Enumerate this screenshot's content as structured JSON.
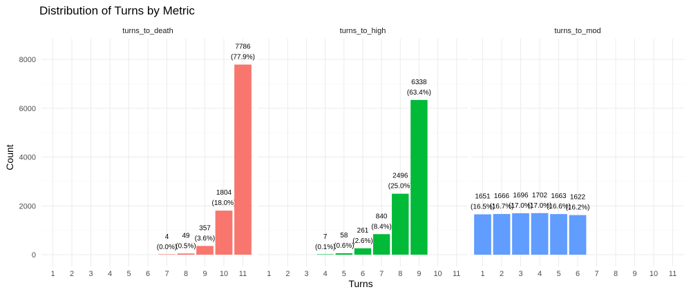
{
  "chart_data": {
    "type": "bar",
    "title": "Distribution of Turns by Metric",
    "xlabel": "Turns",
    "ylabel": "Count",
    "ylim": [
      0,
      8800
    ],
    "y_ticks": [
      0,
      2000,
      4000,
      6000,
      8000
    ],
    "x_ticks": [
      1,
      2,
      3,
      4,
      5,
      6,
      7,
      8,
      9,
      10,
      11
    ],
    "grid": true,
    "facets": [
      {
        "name": "turns_to_death",
        "color": "#F8766D",
        "bars": [
          {
            "x": 7,
            "value": 4,
            "label_count": "4",
            "label_pct": "(0.0%)"
          },
          {
            "x": 8,
            "value": 49,
            "label_count": "49",
            "label_pct": "(0.5%)"
          },
          {
            "x": 9,
            "value": 357,
            "label_count": "357",
            "label_pct": "(3.6%)"
          },
          {
            "x": 10,
            "value": 1804,
            "label_count": "1804",
            "label_pct": "(18.0%)"
          },
          {
            "x": 11,
            "value": 7786,
            "label_count": "7786",
            "label_pct": "(77.9%)"
          }
        ]
      },
      {
        "name": "turns_to_high",
        "color": "#00BA38",
        "bars": [
          {
            "x": 4,
            "value": 7,
            "label_count": "7",
            "label_pct": "(0.1%)"
          },
          {
            "x": 5,
            "value": 58,
            "label_count": "58",
            "label_pct": "(0.6%)"
          },
          {
            "x": 6,
            "value": 261,
            "label_count": "261",
            "label_pct": "(2.6%)"
          },
          {
            "x": 7,
            "value": 840,
            "label_count": "840",
            "label_pct": "(8.4%)"
          },
          {
            "x": 8,
            "value": 2496,
            "label_count": "2496",
            "label_pct": "(25.0%)"
          },
          {
            "x": 9,
            "value": 6338,
            "label_count": "6338",
            "label_pct": "(63.4%)"
          }
        ]
      },
      {
        "name": "turns_to_mod",
        "color": "#619CFF",
        "bars": [
          {
            "x": 1,
            "value": 1651,
            "label_count": "1651",
            "label_pct": "(16.5%)"
          },
          {
            "x": 2,
            "value": 1666,
            "label_count": "1666",
            "label_pct": "(16.7%)"
          },
          {
            "x": 3,
            "value": 1696,
            "label_count": "1696",
            "label_pct": "(17.0%)"
          },
          {
            "x": 4,
            "value": 1702,
            "label_count": "1702",
            "label_pct": "(17.0%)"
          },
          {
            "x": 5,
            "value": 1663,
            "label_count": "1663",
            "label_pct": "(16.6%)"
          },
          {
            "x": 6,
            "value": 1622,
            "label_count": "1622",
            "label_pct": "(16.2%)"
          }
        ]
      }
    ]
  }
}
